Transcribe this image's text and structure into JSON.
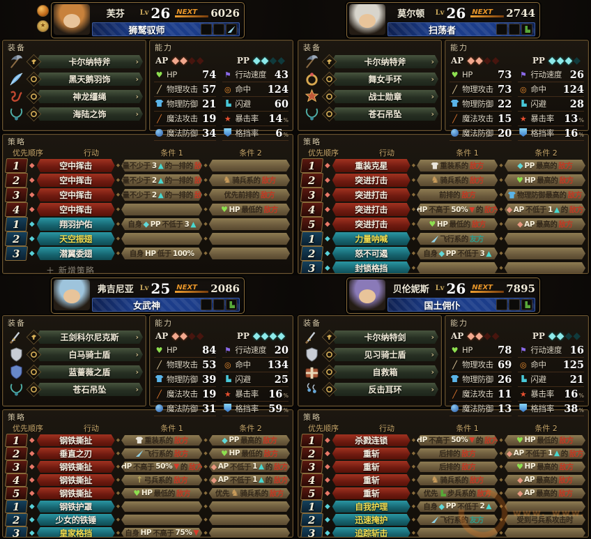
{
  "ui": {
    "section_equipment": "装备",
    "section_ability": "能力",
    "section_strategy": "策略",
    "col_priority": "优先顺序",
    "col_action": "行动",
    "col_cond1": "条件 1",
    "col_cond2": "条件 2",
    "lv_label": "Lv",
    "next_label": "NEXT",
    "ap_label": "AP",
    "pp_label": "PP",
    "add_strategy": "＋ 新增策略",
    "equip_arrow": "›",
    "percent": "%",
    "star": "★",
    "stat_names": {
      "hp": "HP",
      "patk": "物理攻击",
      "pdef": "物理防御",
      "matk": "魔法攻击",
      "mdef": "魔法防御",
      "speed": "行动速度",
      "hit": "命中",
      "evade": "闪避",
      "crit": "暴击率",
      "guard": "格挡率"
    }
  },
  "colors": {
    "accent_gold": "#c9a85c",
    "enemy_red": "#c23823",
    "ally_teal": "#2f9a8a",
    "ap_lit": "#f2a88e",
    "pp_lit": "#8deaea",
    "action_red": "#8a2418",
    "action_teal": "#1f7a85"
  },
  "watermark": {
    "text": "www."
  },
  "characters": [
    {
      "name": "芙芬",
      "level": "26",
      "next_exp": "6026",
      "class": "狮鹫驭师",
      "class_item": "feather",
      "badges": true,
      "hair": "#c8823c",
      "ap": {
        "lit": 2,
        "total": 4
      },
      "pp": {
        "lit": 2,
        "total": 4
      },
      "stats": {
        "hp": "74",
        "patk": "57",
        "pdef": "21",
        "matk": "19",
        "mdef": "34",
        "speed": "43",
        "hit": "124",
        "evade": "60",
        "crit": "14",
        "guard": "6"
      },
      "equipment": [
        {
          "label": "卡尔纳特斧",
          "icon": "axe",
          "slot": "weapon"
        },
        {
          "label": "黑天鹅羽饰",
          "icon": "feather",
          "slot": "accessory"
        },
        {
          "label": "神龙缰绳",
          "icon": "reins",
          "slot": "accessory"
        },
        {
          "label": "海陆之饰",
          "icon": "necklace",
          "slot": "accessory"
        }
      ],
      "tactics": [
        {
          "n": "1",
          "type": "red",
          "action": "空中挥击",
          "gold": false,
          "c1": "数量不少于3▲的一排的敌方",
          "c2": ""
        },
        {
          "n": "2",
          "type": "red",
          "action": "空中挥击",
          "gold": false,
          "c1": "数量不少于2▲的一排的敌方",
          "c2": "[horse]骑兵系的敌方"
        },
        {
          "n": "3",
          "type": "red",
          "action": "空中挥击",
          "gold": false,
          "c1": "数量不少于2▲的一排的敌方",
          "c2": "优先前排的敌方"
        },
        {
          "n": "4",
          "type": "red",
          "action": "空中挥击",
          "gold": false,
          "c1": "",
          "c2": "[hp]HP最低的敌方"
        },
        {
          "n": "1",
          "type": "teal",
          "action": "翔羽护佑",
          "gold": false,
          "c1": "自身[pp]PP不低于3▲",
          "c2": ""
        },
        {
          "n": "2",
          "type": "teal",
          "action": "天空振翅",
          "gold": true,
          "c1": "",
          "c2": ""
        },
        {
          "n": "3",
          "type": "teal",
          "action": "潜翼委翅",
          "gold": false,
          "c1": "自身HP低于100%",
          "c2": ""
        }
      ],
      "has_add_row": true
    },
    {
      "name": "莫尔顿",
      "level": "26",
      "next_exp": "2744",
      "class": "扫荡者",
      "class_item": "boot",
      "badges": false,
      "hair": "#d8d5cc",
      "ap": {
        "lit": 2,
        "total": 4
      },
      "pp": {
        "lit": 3,
        "total": 4
      },
      "stats": {
        "hp": "73",
        "patk": "73",
        "pdef": "22",
        "matk": "15",
        "mdef": "20",
        "speed": "26",
        "hit": "124",
        "evade": "28",
        "crit": "13",
        "guard": "16"
      },
      "equipment": [
        {
          "label": "卡尔纳特斧",
          "icon": "axe",
          "slot": "weapon"
        },
        {
          "label": "舞女手环",
          "icon": "ring",
          "slot": "accessory"
        },
        {
          "label": "战士勋章",
          "icon": "badge",
          "slot": "accessory"
        },
        {
          "label": "苍石吊坠",
          "icon": "necklace",
          "slot": "accessory"
        }
      ],
      "tactics": [
        {
          "n": "1",
          "type": "red",
          "action": "重装克星",
          "gold": false,
          "c1": "[armor]重装系的敌方",
          "c2": "[pp]PP最高的敌方"
        },
        {
          "n": "2",
          "type": "red",
          "action": "突进打击",
          "gold": false,
          "c1": "[horse]骑兵系的敌方",
          "c2": "[hp]HP最高的敌方"
        },
        {
          "n": "3",
          "type": "red",
          "action": "突进打击",
          "gold": false,
          "c1": "前排的敌方",
          "c2": "[armorblue]物理防御最高的敌方"
        },
        {
          "n": "4",
          "type": "red",
          "action": "突进打击",
          "gold": false,
          "c1": "HP不高于50%▼的敌方",
          "c2": "[ap]AP不低于1▲的敌方"
        },
        {
          "n": "5",
          "type": "red",
          "action": "突进打击",
          "gold": false,
          "c1": "[hp]HP最低的敌方",
          "c2": "[ap]AP最高的敌方"
        },
        {
          "n": "1",
          "type": "teal",
          "action": "力量呐喊",
          "gold": true,
          "c1": "[feather]飞行系的友方",
          "c2": ""
        },
        {
          "n": "2",
          "type": "teal",
          "action": "怒不可遏",
          "gold": false,
          "c1": "自身[pp]PP不低于3▲",
          "c2": ""
        },
        {
          "n": "3",
          "type": "teal",
          "action": "封锁格挡",
          "gold": false,
          "c1": "",
          "c2": ""
        }
      ],
      "has_add_row": false
    },
    {
      "name": "弗吉尼亚",
      "level": "25",
      "next_exp": "2086",
      "class": "女武神",
      "class_item": "boot",
      "badges": false,
      "hair": "#9ec4dc",
      "ap": {
        "lit": 2,
        "total": 4
      },
      "pp": {
        "lit": 4,
        "total": 4
      },
      "stats": {
        "hp": "84",
        "patk": "53",
        "pdef": "39",
        "matk": "19",
        "mdef": "31",
        "speed": "20",
        "hit": "134",
        "evade": "25",
        "crit": "16",
        "guard": "59"
      },
      "equipment": [
        {
          "label": "王剑科尔尼克斯",
          "icon": "sword",
          "slot": "weapon"
        },
        {
          "label": "白马骑士盾",
          "icon": "shield",
          "slot": "accessory"
        },
        {
          "label": "蓝蔷薇之盾",
          "icon": "shieldblue",
          "slot": "accessory"
        },
        {
          "label": "苍石吊坠",
          "icon": "necklace",
          "slot": "accessory"
        }
      ],
      "tactics": [
        {
          "n": "1",
          "type": "red",
          "action": "钢铁撕扯",
          "gold": false,
          "c1": "[armor]重装系的敌方",
          "c2": "[pp]PP最高的敌方"
        },
        {
          "n": "2",
          "type": "red",
          "action": "垂直之刃",
          "gold": false,
          "c1": "[feather]飞行系的敌方",
          "c2": "[hp]HP最低的敌方"
        },
        {
          "n": "3",
          "type": "red",
          "action": "钢铁撕扯",
          "gold": false,
          "c1": "HP不高于50%▼的敌方",
          "c2": "[ap]AP不低于1▲的敌方"
        },
        {
          "n": "4",
          "type": "red",
          "action": "钢铁撕扯",
          "gold": false,
          "c1": "[bow]弓兵系的敌方",
          "c2": "[ap]AP不低于1▲的敌方"
        },
        {
          "n": "5",
          "type": "red",
          "action": "钢铁撕扯",
          "gold": false,
          "c1": "[hp]HP最低的敌方",
          "c2": "优先[horse]骑兵系的敌方"
        },
        {
          "n": "1",
          "type": "teal",
          "action": "钢铁护罩",
          "gold": false,
          "c1": "",
          "c2": ""
        },
        {
          "n": "2",
          "type": "teal",
          "action": "少女的铁锤",
          "gold": false,
          "c1": "",
          "c2": ""
        },
        {
          "n": "3",
          "type": "teal",
          "action": "皇家格挡",
          "gold": true,
          "c1": "自身HP不高于75%▼",
          "c2": ""
        }
      ],
      "has_add_row": false
    },
    {
      "name": "贝伦妮斯",
      "level": "26",
      "next_exp": "7895",
      "class": "国土佣仆",
      "class_item": "boot",
      "badges": false,
      "hair": "#8a7ab8",
      "ap": {
        "lit": 2,
        "total": 4
      },
      "pp": {
        "lit": 2,
        "total": 4
      },
      "stats": {
        "hp": "78",
        "patk": "69",
        "pdef": "26",
        "matk": "11",
        "mdef": "13",
        "speed": "16",
        "hit": "125",
        "evade": "21",
        "crit": "16",
        "guard": "38"
      },
      "equipment": [
        {
          "label": "卡尔纳特剑",
          "icon": "sword",
          "slot": "weapon"
        },
        {
          "label": "见习骑士盾",
          "icon": "shield",
          "slot": "accessory"
        },
        {
          "label": "自救箱",
          "icon": "box",
          "slot": "accessory"
        },
        {
          "label": "反击耳环",
          "icon": "earring",
          "slot": "accessory"
        }
      ],
      "tactics": [
        {
          "n": "1",
          "type": "red",
          "action": "杀戮连锁",
          "gold": false,
          "c1": "HP不高于50%▼的敌方",
          "c2": "[hp]HP最低的敌方"
        },
        {
          "n": "2",
          "type": "red",
          "action": "重斩",
          "gold": false,
          "c1": "后排的敌方",
          "c2": "[ap]AP不低于1▲的敌方"
        },
        {
          "n": "3",
          "type": "red",
          "action": "重斩",
          "gold": false,
          "c1": "后排的敌方",
          "c2": "[hp]HP最高的敌方"
        },
        {
          "n": "4",
          "type": "red",
          "action": "重斩",
          "gold": false,
          "c1": "[horse]骑兵系的敌方",
          "c2": "[ap]AP最高的敌方"
        },
        {
          "n": "5",
          "type": "red",
          "action": "重斩",
          "gold": false,
          "c1": "优先[boot]步兵系的敌方",
          "c2": "[ap]AP最高的敌方"
        },
        {
          "n": "1",
          "type": "teal",
          "action": "自我护理",
          "gold": true,
          "c1": "自身[pp]PP不低于2▲",
          "c2": ""
        },
        {
          "n": "2",
          "type": "teal",
          "action": "迅速掩护",
          "gold": true,
          "c1": "[feather]飞行系的友方",
          "c2": "受到弓兵系攻击时"
        },
        {
          "n": "3",
          "type": "teal",
          "action": "追踪斩击",
          "gold": true,
          "c1": "",
          "c2": ""
        }
      ],
      "has_add_row": false
    }
  ]
}
